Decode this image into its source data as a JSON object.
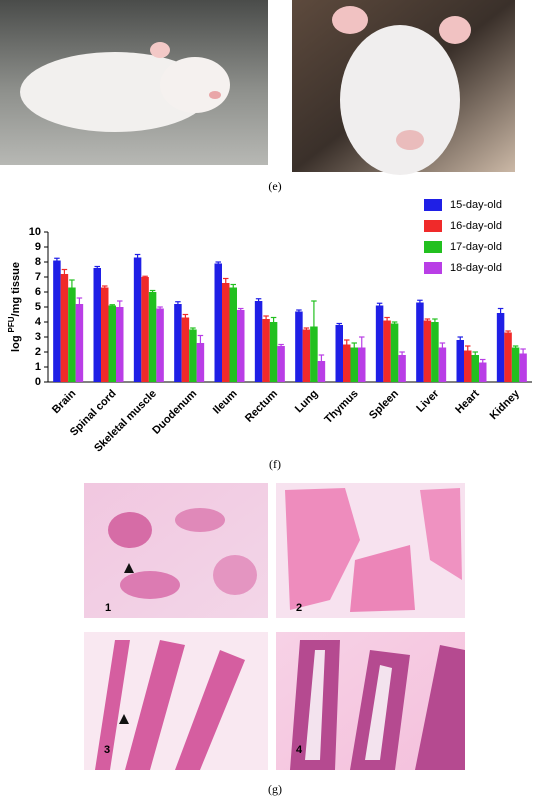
{
  "panel_labels": {
    "e": "(e)",
    "f": "(f)",
    "g": "(g)"
  },
  "histology_labels": [
    "1",
    "2",
    "3",
    "4"
  ],
  "chart_data": {
    "type": "bar",
    "ylabel_parts": [
      "log",
      "PFU",
      "/mg tissue"
    ],
    "categories": [
      "Brain",
      "Spinal cord",
      "Skeletal muscle",
      "Duodenum",
      "Ileum",
      "Rectum",
      "Lung",
      "Thymus",
      "Spleen",
      "Liver",
      "Heart",
      "Kidney"
    ],
    "series": [
      {
        "name": "15-day-old",
        "color": "#1f1fe6",
        "values": [
          8.1,
          7.6,
          8.3,
          5.2,
          7.9,
          5.4,
          4.7,
          3.8,
          5.1,
          5.3,
          2.8,
          4.6
        ],
        "errors": [
          0.15,
          0.1,
          0.2,
          0.15,
          0.1,
          0.15,
          0.1,
          0.1,
          0.15,
          0.15,
          0.2,
          0.3
        ]
      },
      {
        "name": "16-day-old",
        "color": "#f02a2a",
        "values": [
          7.2,
          6.3,
          7.0,
          4.3,
          6.6,
          4.2,
          3.5,
          2.5,
          4.1,
          4.1,
          2.1,
          3.3
        ],
        "errors": [
          0.3,
          0.1,
          0.05,
          0.2,
          0.3,
          0.2,
          0.1,
          0.3,
          0.2,
          0.1,
          0.3,
          0.1
        ]
      },
      {
        "name": "17-day-old",
        "color": "#22c01f",
        "values": [
          6.3,
          5.1,
          6.0,
          3.5,
          6.3,
          4.0,
          3.7,
          2.3,
          3.9,
          4.0,
          1.8,
          2.3
        ],
        "errors": [
          0.5,
          0.05,
          0.1,
          0.1,
          0.2,
          0.3,
          1.7,
          0.3,
          0.1,
          0.2,
          0.2,
          0.1
        ]
      },
      {
        "name": "18-day-old",
        "color": "#b93ee6",
        "values": [
          5.2,
          5.0,
          4.9,
          2.6,
          4.8,
          2.4,
          1.4,
          2.3,
          1.8,
          2.3,
          1.3,
          1.9
        ],
        "errors": [
          0.4,
          0.4,
          0.1,
          0.5,
          0.1,
          0.1,
          0.4,
          0.7,
          0.2,
          0.3,
          0.2,
          0.3
        ]
      }
    ],
    "ylim": [
      0,
      10
    ],
    "yticks": [
      0,
      1,
      2,
      3,
      4,
      5,
      6,
      7,
      8,
      9,
      10
    ],
    "legend": "upper right"
  }
}
